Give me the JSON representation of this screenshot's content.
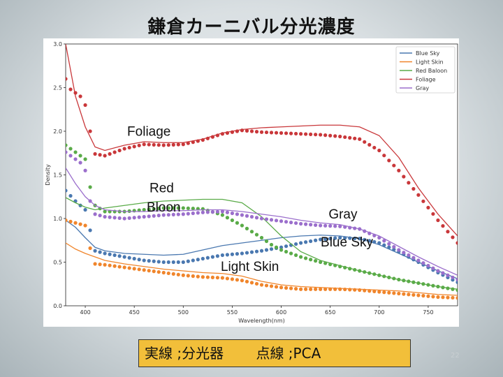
{
  "slide": {
    "title": "鎌倉カーニバル分光濃度",
    "caption": "実線 ;分光器　　 点線 ;PCA",
    "slide_number": "22"
  },
  "colors": {
    "Blue Sky": "#4a78b0",
    "Light Skin": "#f0852b",
    "Red Baloon": "#5aab48",
    "Foliage": "#c9373a",
    "Gray": "#9b6fcc"
  },
  "chart_data": {
    "type": "line",
    "xlabel": "Wavelength(nm)",
    "ylabel": "Density",
    "xlim": [
      380,
      780
    ],
    "ylim": [
      0.0,
      3.0
    ],
    "xticks": [
      400,
      450,
      500,
      550,
      600,
      650,
      700,
      750
    ],
    "yticks": [
      0.0,
      0.5,
      1.0,
      1.5,
      2.0,
      2.5,
      3.0
    ],
    "legend_position": "top-right",
    "legend": [
      "Blue Sky",
      "Light Skin",
      "Red Baloon",
      "Foliage",
      "Gray"
    ],
    "series": [
      {
        "name": "Blue Sky",
        "style": "solid",
        "x": [
          380,
          390,
          400,
          410,
          420,
          440,
          460,
          480,
          500,
          520,
          540,
          560,
          580,
          600,
          620,
          640,
          660,
          680,
          700,
          720,
          740,
          760,
          780
        ],
        "y": [
          0.98,
          0.9,
          0.78,
          0.67,
          0.63,
          0.6,
          0.59,
          0.58,
          0.59,
          0.64,
          0.69,
          0.72,
          0.75,
          0.78,
          0.8,
          0.81,
          0.8,
          0.77,
          0.7,
          0.6,
          0.5,
          0.4,
          0.31
        ]
      },
      {
        "name": "Blue Sky PCA",
        "style": "dots",
        "x": [
          380,
          390,
          400,
          410,
          420,
          440,
          460,
          480,
          500,
          520,
          540,
          560,
          580,
          600,
          620,
          640,
          660,
          680,
          700,
          720,
          740,
          760,
          780
        ],
        "y": [
          1.32,
          1.2,
          1.1,
          0.63,
          0.6,
          0.56,
          0.52,
          0.5,
          0.5,
          0.54,
          0.58,
          0.6,
          0.63,
          0.67,
          0.72,
          0.76,
          0.78,
          0.77,
          0.72,
          0.62,
          0.5,
          0.38,
          0.27
        ]
      },
      {
        "name": "Light Skin",
        "style": "solid",
        "x": [
          380,
          390,
          400,
          410,
          420,
          440,
          460,
          480,
          500,
          520,
          540,
          560,
          580,
          600,
          620,
          640,
          660,
          680,
          700,
          720,
          740,
          760,
          780
        ],
        "y": [
          0.72,
          0.65,
          0.6,
          0.56,
          0.52,
          0.48,
          0.45,
          0.42,
          0.4,
          0.38,
          0.37,
          0.34,
          0.28,
          0.24,
          0.22,
          0.21,
          0.2,
          0.19,
          0.18,
          0.17,
          0.15,
          0.13,
          0.12
        ]
      },
      {
        "name": "Light Skin PCA",
        "style": "dots",
        "x": [
          380,
          390,
          400,
          405,
          410,
          420,
          440,
          460,
          480,
          500,
          520,
          540,
          560,
          580,
          600,
          620,
          640,
          660,
          680,
          700,
          720,
          740,
          760,
          780
        ],
        "y": [
          0.98,
          0.95,
          0.92,
          0.66,
          0.48,
          0.47,
          0.44,
          0.41,
          0.38,
          0.35,
          0.33,
          0.32,
          0.29,
          0.24,
          0.21,
          0.19,
          0.19,
          0.19,
          0.18,
          0.16,
          0.14,
          0.12,
          0.1,
          0.09
        ]
      },
      {
        "name": "Red Baloon",
        "style": "solid",
        "x": [
          380,
          390,
          400,
          410,
          420,
          440,
          460,
          480,
          500,
          520,
          540,
          560,
          580,
          600,
          620,
          640,
          660,
          680,
          700,
          720,
          740,
          760,
          780
        ],
        "y": [
          1.24,
          1.18,
          1.13,
          1.1,
          1.12,
          1.15,
          1.18,
          1.2,
          1.21,
          1.22,
          1.22,
          1.18,
          1.02,
          0.8,
          0.62,
          0.52,
          0.46,
          0.4,
          0.35,
          0.3,
          0.26,
          0.22,
          0.19
        ]
      },
      {
        "name": "Red Baloon PCA",
        "style": "dots",
        "x": [
          380,
          385,
          390,
          395,
          400,
          405,
          410,
          420,
          440,
          460,
          480,
          500,
          520,
          540,
          550,
          560,
          570,
          580,
          590,
          600,
          620,
          640,
          660,
          680,
          700,
          720,
          740,
          760,
          780
        ],
        "y": [
          1.84,
          1.8,
          1.76,
          1.72,
          1.68,
          1.36,
          1.15,
          1.08,
          1.08,
          1.1,
          1.12,
          1.12,
          1.11,
          1.04,
          0.98,
          0.92,
          0.85,
          0.78,
          0.7,
          0.64,
          0.56,
          0.5,
          0.45,
          0.4,
          0.35,
          0.3,
          0.26,
          0.22,
          0.18
        ]
      },
      {
        "name": "Foliage",
        "style": "solid",
        "x": [
          380,
          390,
          400,
          410,
          420,
          440,
          460,
          480,
          500,
          520,
          540,
          560,
          580,
          600,
          620,
          640,
          660,
          680,
          700,
          720,
          740,
          760,
          780
        ],
        "y": [
          3.0,
          2.4,
          2.05,
          1.82,
          1.78,
          1.84,
          1.88,
          1.87,
          1.87,
          1.91,
          1.98,
          2.02,
          2.04,
          2.05,
          2.06,
          2.07,
          2.07,
          2.05,
          1.95,
          1.7,
          1.35,
          1.05,
          0.8
        ]
      },
      {
        "name": "Foliage PCA",
        "style": "dots",
        "x": [
          380,
          385,
          390,
          395,
          400,
          405,
          410,
          420,
          440,
          460,
          480,
          500,
          520,
          540,
          560,
          580,
          600,
          620,
          640,
          660,
          680,
          700,
          720,
          740,
          760,
          780
        ],
        "y": [
          2.6,
          2.48,
          2.44,
          2.4,
          2.3,
          2.0,
          1.74,
          1.72,
          1.8,
          1.85,
          1.84,
          1.85,
          1.9,
          1.97,
          2.01,
          1.99,
          1.98,
          1.97,
          1.96,
          1.94,
          1.91,
          1.78,
          1.55,
          1.27,
          0.98,
          0.72
        ]
      },
      {
        "name": "Gray",
        "style": "solid",
        "x": [
          380,
          390,
          400,
          410,
          420,
          440,
          460,
          480,
          500,
          520,
          540,
          560,
          580,
          600,
          620,
          640,
          660,
          680,
          700,
          720,
          740,
          760,
          780
        ],
        "y": [
          1.58,
          1.4,
          1.25,
          1.15,
          1.1,
          1.08,
          1.08,
          1.09,
          1.09,
          1.1,
          1.1,
          1.08,
          1.05,
          1.02,
          0.98,
          0.95,
          0.93,
          0.88,
          0.8,
          0.68,
          0.56,
          0.45,
          0.35
        ]
      },
      {
        "name": "Gray PCA",
        "style": "dots",
        "x": [
          380,
          385,
          390,
          395,
          400,
          405,
          410,
          420,
          440,
          460,
          480,
          500,
          520,
          540,
          560,
          580,
          600,
          620,
          640,
          660,
          680,
          700,
          720,
          740,
          760,
          780
        ],
        "y": [
          1.76,
          1.72,
          1.68,
          1.64,
          1.55,
          1.2,
          1.05,
          1.02,
          1.0,
          1.02,
          1.04,
          1.05,
          1.07,
          1.08,
          1.04,
          1.0,
          0.97,
          0.94,
          0.92,
          0.91,
          0.88,
          0.78,
          0.64,
          0.52,
          0.4,
          0.3
        ]
      }
    ],
    "annotations": [
      {
        "text": "Foliage",
        "x": 465,
        "y": 1.95
      },
      {
        "text": "Red",
        "x": 478,
        "y": 1.3
      },
      {
        "text": "Bloon",
        "x": 480,
        "y": 1.08
      },
      {
        "text": "Gray",
        "x": 663,
        "y": 1.0
      },
      {
        "text": "Blue Sky",
        "x": 667,
        "y": 0.68
      },
      {
        "text": "Light Skin",
        "x": 568,
        "y": 0.4
      }
    ]
  }
}
